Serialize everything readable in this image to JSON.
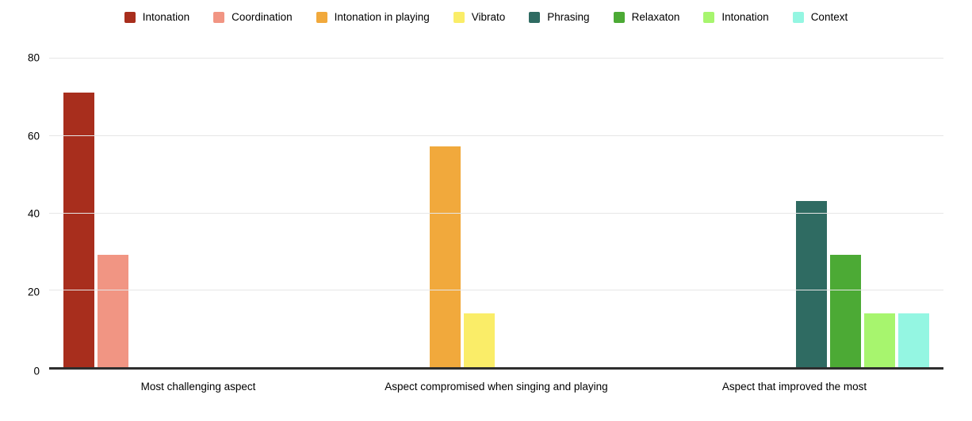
{
  "chart_data": {
    "type": "bar",
    "title": "",
    "categories": [
      "Most challenging aspect",
      "Aspect compromised when singing and playing",
      "Aspect that improved the most"
    ],
    "series": [
      {
        "name": "Intonation",
        "color": "#a82e1d",
        "category": 0,
        "value": 71
      },
      {
        "name": "Coordination",
        "color": "#f19583",
        "category": 0,
        "value": 29
      },
      {
        "name": "Intonation in playing",
        "color": "#f1a93c",
        "category": 1,
        "value": 57
      },
      {
        "name": "Vibrato",
        "color": "#faed68",
        "category": 1,
        "value": 14
      },
      {
        "name": "Phrasing",
        "color": "#2f6b62",
        "category": 2,
        "value": 43
      },
      {
        "name": "Relaxaton",
        "color": "#4caa35",
        "category": 2,
        "value": 29
      },
      {
        "name": "Intonation",
        "color": "#a7f56e",
        "category": 2,
        "value": 14
      },
      {
        "name": "Context",
        "color": "#94f6e2",
        "category": 2,
        "value": 14
      }
    ],
    "slots_per_category": 8,
    "y_ticks": [
      0,
      20,
      40,
      60,
      80
    ],
    "ylim": [
      0,
      80
    ],
    "grid": true,
    "legend_position": "top",
    "axis_color": "#2e2e2e",
    "gridline_color": "#e6e6e6"
  }
}
